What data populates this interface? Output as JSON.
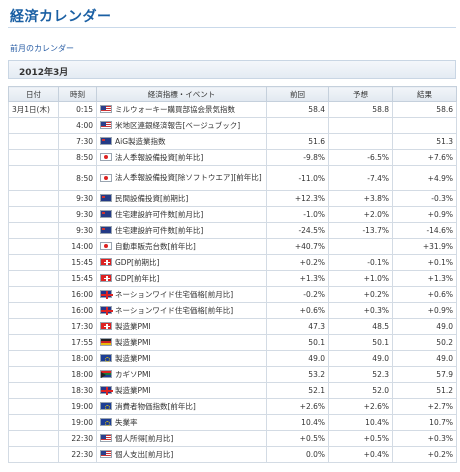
{
  "page": {
    "title": "経済カレンダー",
    "prev_link": "前月のカレンダー",
    "month": "2012年3月"
  },
  "table": {
    "headers": {
      "date": "日付",
      "time": "時刻",
      "event": "経済指標・イベント",
      "prev": "前回",
      "forecast": "予想",
      "result": "結果"
    },
    "rows": [
      {
        "date": "3月1日(木)",
        "time": "0:15",
        "flag": "us",
        "event": "ミルウォーキー購買部協会景気指数",
        "prev": "58.4",
        "forecast": "58.8",
        "result": "58.6"
      },
      {
        "date": "",
        "time": "4:00",
        "flag": "us",
        "event": "米地区連銀経済報告[ベージュブック]",
        "prev": "",
        "forecast": "",
        "result": ""
      },
      {
        "date": "",
        "time": "7:30",
        "flag": "au",
        "event": "AiG製造業指数",
        "prev": "51.6",
        "forecast": "",
        "result": "51.3"
      },
      {
        "date": "",
        "time": "8:50",
        "flag": "jp",
        "event": "法人季報設備投資[前年比]",
        "prev": "-9.8%",
        "forecast": "-6.5%",
        "result": "+7.6%"
      },
      {
        "date": "",
        "time": "8:50",
        "flag": "jp",
        "event": "法人季報設備投資[除ソフトウエア][前年比]",
        "prev": "-11.0%",
        "forecast": "-7.4%",
        "result": "+4.9%"
      },
      {
        "date": "",
        "time": "9:30",
        "flag": "au",
        "event": "民間設備投資[前期比]",
        "prev": "+12.3%",
        "forecast": "+3.8%",
        "result": "-0.3%"
      },
      {
        "date": "",
        "time": "9:30",
        "flag": "au",
        "event": "住宅建設許可件数[前月比]",
        "prev": "-1.0%",
        "forecast": "+2.0%",
        "result": "+0.9%"
      },
      {
        "date": "",
        "time": "9:30",
        "flag": "au",
        "event": "住宅建設許可件数[前年比]",
        "prev": "-24.5%",
        "forecast": "-13.7%",
        "result": "-14.6%"
      },
      {
        "date": "",
        "time": "14:00",
        "flag": "jp",
        "event": "自動車販売台数[前年比]",
        "prev": "+40.7%",
        "forecast": "",
        "result": "+31.9%"
      },
      {
        "date": "",
        "time": "15:45",
        "flag": "ch",
        "event": "GDP[前期比]",
        "prev": "+0.2%",
        "forecast": "-0.1%",
        "result": "+0.1%"
      },
      {
        "date": "",
        "time": "15:45",
        "flag": "ch",
        "event": "GDP[前年比]",
        "prev": "+1.3%",
        "forecast": "+1.0%",
        "result": "+1.3%"
      },
      {
        "date": "",
        "time": "16:00",
        "flag": "uk",
        "event": "ネーションワイド住宅価格[前月比]",
        "prev": "-0.2%",
        "forecast": "+0.2%",
        "result": "+0.6%"
      },
      {
        "date": "",
        "time": "16:00",
        "flag": "uk",
        "event": "ネーションワイド住宅価格[前年比]",
        "prev": "+0.6%",
        "forecast": "+0.3%",
        "result": "+0.9%"
      },
      {
        "date": "",
        "time": "17:30",
        "flag": "ch",
        "event": "製造業PMI",
        "prev": "47.3",
        "forecast": "48.5",
        "result": "49.0"
      },
      {
        "date": "",
        "time": "17:55",
        "flag": "de",
        "event": "製造業PMI",
        "prev": "50.1",
        "forecast": "50.1",
        "result": "50.2"
      },
      {
        "date": "",
        "time": "18:00",
        "flag": "eu",
        "event": "製造業PMI",
        "prev": "49.0",
        "forecast": "49.0",
        "result": "49.0"
      },
      {
        "date": "",
        "time": "18:00",
        "flag": "za",
        "event": "カギソPMI",
        "prev": "53.2",
        "forecast": "52.3",
        "result": "57.9"
      },
      {
        "date": "",
        "time": "18:30",
        "flag": "uk",
        "event": "製造業PMI",
        "prev": "52.1",
        "forecast": "52.0",
        "result": "51.2"
      },
      {
        "date": "",
        "time": "19:00",
        "flag": "eu",
        "event": "消費者物価指数[前年比]",
        "prev": "+2.6%",
        "forecast": "+2.6%",
        "result": "+2.7%"
      },
      {
        "date": "",
        "time": "19:00",
        "flag": "eu",
        "event": "失業率",
        "prev": "10.4%",
        "forecast": "10.4%",
        "result": "10.7%"
      },
      {
        "date": "",
        "time": "22:30",
        "flag": "us",
        "event": "個人所得[前月比]",
        "prev": "+0.5%",
        "forecast": "+0.5%",
        "result": "+0.3%"
      },
      {
        "date": "",
        "time": "22:30",
        "flag": "us",
        "event": "個人支出[前月比]",
        "prev": "0.0%",
        "forecast": "+0.4%",
        "result": "+0.2%"
      }
    ]
  }
}
